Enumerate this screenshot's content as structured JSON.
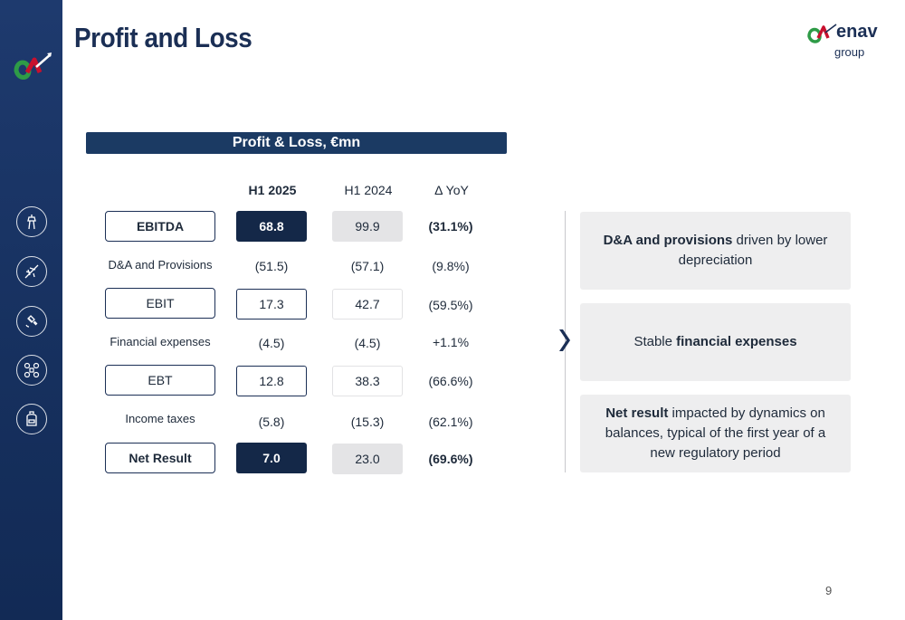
{
  "title": "Profit and Loss",
  "brand": {
    "name": "enav",
    "sub": "group"
  },
  "section": "Profit & Loss, €mn",
  "columns": [
    "H1 2025",
    "H1 2024",
    "Δ YoY"
  ],
  "rows": [
    {
      "label": "EBITDA",
      "h1_2025": "68.8",
      "h1_2024": "99.9",
      "yoy": "(31.1%)"
    },
    {
      "label": "D&A and Provisions",
      "h1_2025": "(51.5)",
      "h1_2024": "(57.1)",
      "yoy": "(9.8%)"
    },
    {
      "label": "EBIT",
      "h1_2025": "17.3",
      "h1_2024": "42.7",
      "yoy": "(59.5%)"
    },
    {
      "label": "Financial expenses",
      "h1_2025": "(4.5)",
      "h1_2024": "(4.5)",
      "yoy": "+1.1%"
    },
    {
      "label": "EBT",
      "h1_2025": "12.8",
      "h1_2024": "38.3",
      "yoy": "(66.6%)"
    },
    {
      "label": "Income taxes",
      "h1_2025": "(5.8)",
      "h1_2024": "(15.3)",
      "yoy": "(62.1%)"
    },
    {
      "label": "Net Result",
      "h1_2025": "7.0",
      "h1_2024": "23.0",
      "yoy": "(69.6%)"
    }
  ],
  "notes": [
    {
      "bold": "D&A and provisions",
      "text": " driven by lower depreciation"
    },
    {
      "pre": "Stable ",
      "bold": "financial expenses"
    },
    {
      "bold": "Net result",
      "text": " impacted by dynamics on balances, typical of the first year of a new regulatory period"
    }
  ],
  "sidebar_icons": [
    "control-tower-icon",
    "airplane-icon",
    "satellite-icon",
    "drone-icon",
    "backpack-icon"
  ],
  "colors": {
    "navy": "#1b2f55",
    "sidebar": "#1e3a6e",
    "dark_cell": "#142848",
    "grey_cell": "#e4e4e6",
    "note_bg": "#eeeeef",
    "brand_red": "#c8102e",
    "brand_green": "#2e9b47"
  },
  "page_number": "9"
}
